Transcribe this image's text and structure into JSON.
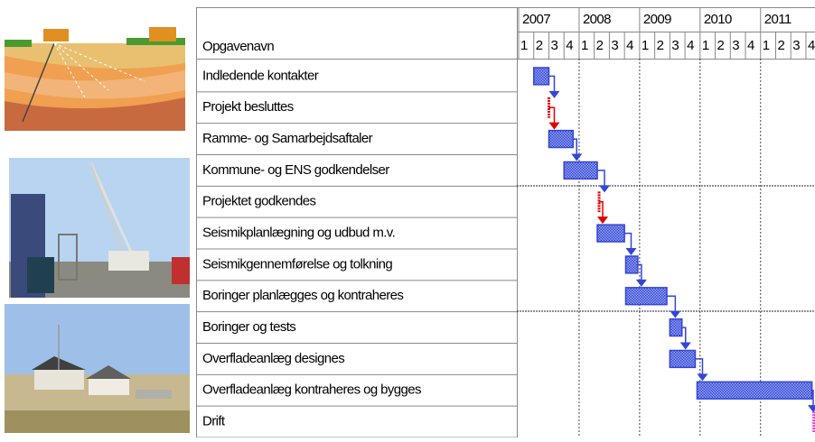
{
  "chart_data": {
    "type": "gantt",
    "header": "Opgavenavn",
    "xlim": [
      2006.97,
      2011.9
    ],
    "xticks": [
      2007,
      2008,
      2009,
      2010,
      2011
    ],
    "quarter_labels": [
      "1",
      "2",
      "3",
      "4"
    ],
    "tasks": [
      {
        "name": "Indledende kontakter",
        "start": 2007.25,
        "end": 2007.5,
        "color": "#3345d6"
      },
      {
        "name": "Projekt besluttes",
        "start": 2007.5,
        "end": 2007.5,
        "color": "#e00000"
      },
      {
        "name": "Ramme- og Samarbejdsaftaler",
        "start": 2007.5,
        "end": 2007.9,
        "color": "#3345d6"
      },
      {
        "name": "Kommune- og ENS godkendelser",
        "start": 2007.75,
        "end": 2008.3,
        "color": "#3345d6"
      },
      {
        "name": "Projektet godkendes",
        "start": 2008.33,
        "end": 2008.33,
        "color": "#e00000"
      },
      {
        "name": "Seismikplanlægning og udbud m.v.",
        "start": 2008.3,
        "end": 2008.75,
        "color": "#3345d6"
      },
      {
        "name": "Seismikgennemførelse og tolkning",
        "start": 2008.77,
        "end": 2008.97,
        "color": "#3345d6"
      },
      {
        "name": "Boringer planlægges og kontraheres",
        "start": 2008.77,
        "end": 2009.45,
        "color": "#3345d6"
      },
      {
        "name": "Boringer og tests",
        "start": 2009.5,
        "end": 2009.7,
        "color": "#3345d6"
      },
      {
        "name": "Overfladeanlæg designes",
        "start": 2009.5,
        "end": 2009.92,
        "color": "#3345d6"
      },
      {
        "name": "Overfladeanlæg kontraheres og bygges",
        "start": 2009.95,
        "end": 2011.85,
        "color": "#3345d6"
      },
      {
        "name": "Drift",
        "start": 2011.88,
        "end": 2011.9,
        "color": "#e040e0"
      }
    ]
  }
}
